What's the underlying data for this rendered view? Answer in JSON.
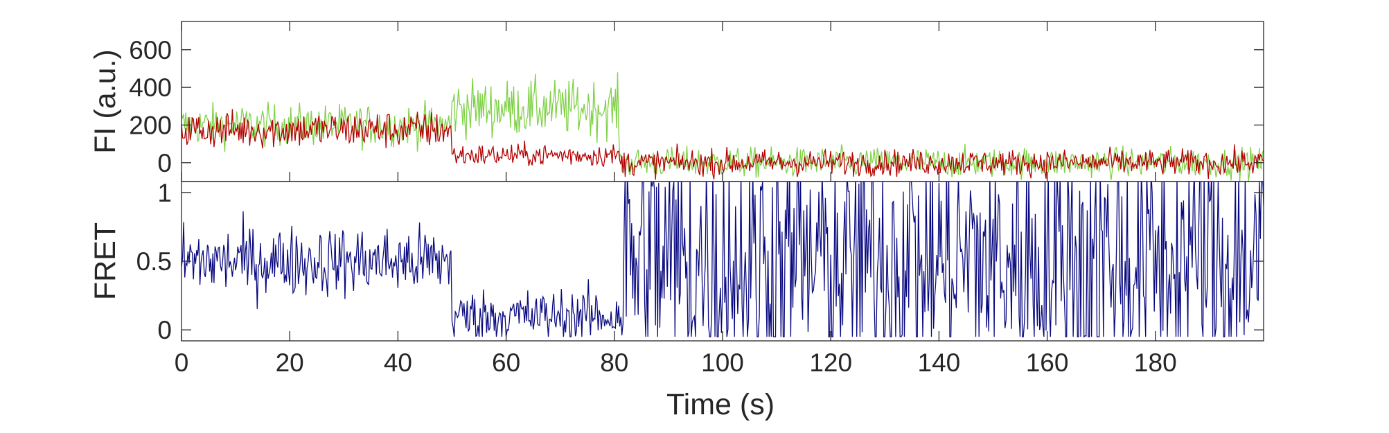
{
  "chart_data": [
    {
      "type": "line",
      "ylabel": "FI (a.u.)",
      "xlabel": "",
      "xlim": [
        0,
        200
      ],
      "ylim": [
        -100,
        750
      ],
      "y_ticks": [
        0,
        200,
        400,
        600
      ],
      "x_ticks": [],
      "grid": false,
      "colors": {
        "donor": "#7fd147",
        "acceptor": "#b30000"
      },
      "series": [
        {
          "segments": [
            {
              "x_range": [
                0,
                50
              ],
              "mean": 200,
              "noise": 55
            },
            {
              "x_range": [
                50,
                81
              ],
              "mean": 290,
              "noise": 75
            },
            {
              "x_range": [
                81,
                200
              ],
              "mean": 0,
              "noise": 40
            }
          ]
        },
        {
          "segments": [
            {
              "x_range": [
                0,
                50
              ],
              "mean": 175,
              "noise": 50
            },
            {
              "x_range": [
                50,
                81
              ],
              "mean": 40,
              "noise": 30
            },
            {
              "x_range": [
                81,
                200
              ],
              "mean": 0,
              "noise": 35
            }
          ]
        }
      ]
    },
    {
      "type": "line",
      "ylabel": "FRET",
      "xlabel": "Time (s)",
      "xlim": [
        0,
        200
      ],
      "ylim": [
        -0.08,
        1.08
      ],
      "y_ticks": [
        0,
        0.5,
        1
      ],
      "y_tick_labels": [
        "0",
        "0.5",
        "1"
      ],
      "x_ticks": [
        0,
        20,
        40,
        60,
        80,
        100,
        120,
        140,
        160,
        180
      ],
      "grid": false,
      "color": "#0a0a80",
      "series": [
        {
          "segments": [
            {
              "x_range": [
                0,
                50
              ],
              "mean": 0.5,
              "noise": 0.13
            },
            {
              "x_range": [
                50,
                81
              ],
              "mean": 0.1,
              "noise": 0.1
            },
            {
              "x_range": [
                81,
                200
              ],
              "mean": 0.5,
              "noise": 0.55
            }
          ]
        }
      ]
    }
  ]
}
